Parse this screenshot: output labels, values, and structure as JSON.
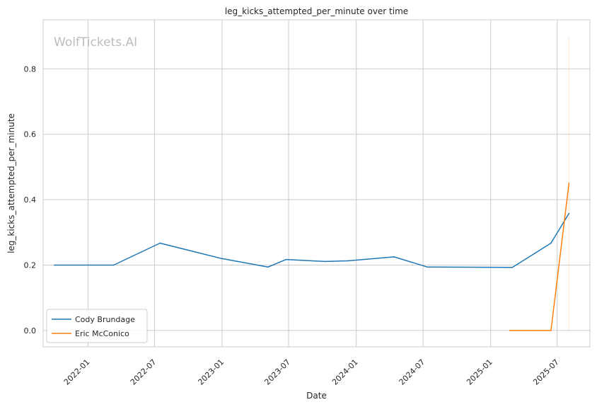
{
  "chart_data": {
    "type": "line",
    "title": "leg_kicks_attempted_per_minute over time",
    "xlabel": "Date",
    "ylabel": "leg_kicks_attempted_per_minute",
    "watermark": "WolfTickets.AI",
    "x_ticks": [
      "2022-01",
      "2022-07",
      "2023-01",
      "2023-07",
      "2024-01",
      "2024-07",
      "2025-01",
      "2025-07"
    ],
    "y_ticks": [
      0.0,
      0.2,
      0.4,
      0.6,
      0.8
    ],
    "y_tick_labels": [
      "0.0",
      "0.2",
      "0.4",
      "0.6",
      "0.8"
    ],
    "xlim": [
      "2021-09-01",
      "2025-09-28"
    ],
    "ylim": [
      -0.05,
      0.95
    ],
    "grid": true,
    "legend_position": "lower-left",
    "series": [
      {
        "name": "Cody Brundage",
        "color": "#1f77b4",
        "points": [
          {
            "x": "2021-10-02",
            "y": 0.2
          },
          {
            "x": "2022-03-12",
            "y": 0.2
          },
          {
            "x": "2022-07-16",
            "y": 0.267
          },
          {
            "x": "2022-12-31",
            "y": 0.22
          },
          {
            "x": "2023-05-06",
            "y": 0.194
          },
          {
            "x": "2023-06-24",
            "y": 0.217
          },
          {
            "x": "2023-10-07",
            "y": 0.211
          },
          {
            "x": "2023-12-09",
            "y": 0.213
          },
          {
            "x": "2024-04-13",
            "y": 0.225
          },
          {
            "x": "2024-07-13",
            "y": 0.194
          },
          {
            "x": "2025-03-01",
            "y": 0.193
          },
          {
            "x": "2025-06-14",
            "y": 0.267
          },
          {
            "x": "2025-08-02",
            "y": 0.358
          }
        ]
      },
      {
        "name": "Eric McConico",
        "color": "#ff7f0e",
        "points": [
          {
            "x": "2025-02-22",
            "y": 0.0
          },
          {
            "x": "2025-06-14",
            "y": 0.0
          },
          {
            "x": "2025-08-02",
            "y": 0.45
          }
        ],
        "band": {
          "x": "2025-08-02",
          "y_low": 0.0,
          "y_high": 0.9
        }
      }
    ]
  }
}
